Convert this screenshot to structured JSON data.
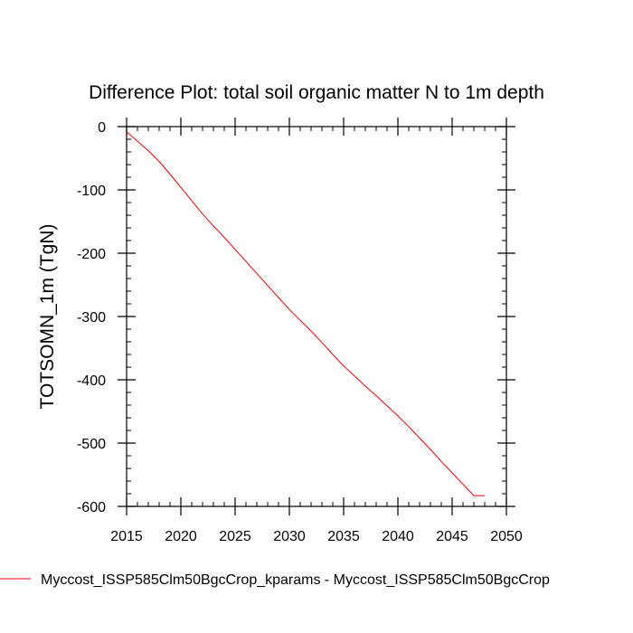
{
  "chart_data": {
    "type": "line",
    "title": "Difference Plot: total soil organic matter N to 1m depth",
    "ylabel": "TOTSOMN_1m  (TgN)",
    "xlim": [
      2015,
      2050
    ],
    "ylim": [
      -600,
      0
    ],
    "x_ticks": [
      2015,
      2020,
      2025,
      2030,
      2035,
      2040,
      2045,
      2050
    ],
    "y_ticks": [
      0,
      -100,
      -200,
      -300,
      -400,
      -500,
      -600
    ],
    "x_minor_step": 1,
    "y_minor_step": 20,
    "grid": false,
    "legend_position": "bottom-left",
    "series": [
      {
        "name": "Myccost_ISSP585Clm50BgcCrop_kparams - Myccost_ISSP585Clm50BgcCrop",
        "color": "#ff0000",
        "x": [
          2015,
          2016,
          2017,
          2018,
          2019,
          2020,
          2021,
          2022,
          2023,
          2024,
          2025,
          2026,
          2027,
          2028,
          2029,
          2030,
          2031,
          2032,
          2033,
          2034,
          2035,
          2036,
          2037,
          2038,
          2039,
          2040,
          2041,
          2042,
          2043,
          2044,
          2045,
          2046,
          2047,
          2048
        ],
        "y": [
          -8,
          -23,
          -38,
          -55,
          -75,
          -96,
          -117,
          -138,
          -157,
          -175,
          -194,
          -213,
          -232,
          -251,
          -270,
          -289,
          -306,
          -323,
          -341,
          -360,
          -378,
          -394,
          -410,
          -425,
          -441,
          -457,
          -474,
          -492,
          -510,
          -529,
          -547,
          -565,
          -583,
          -583
        ]
      }
    ]
  }
}
